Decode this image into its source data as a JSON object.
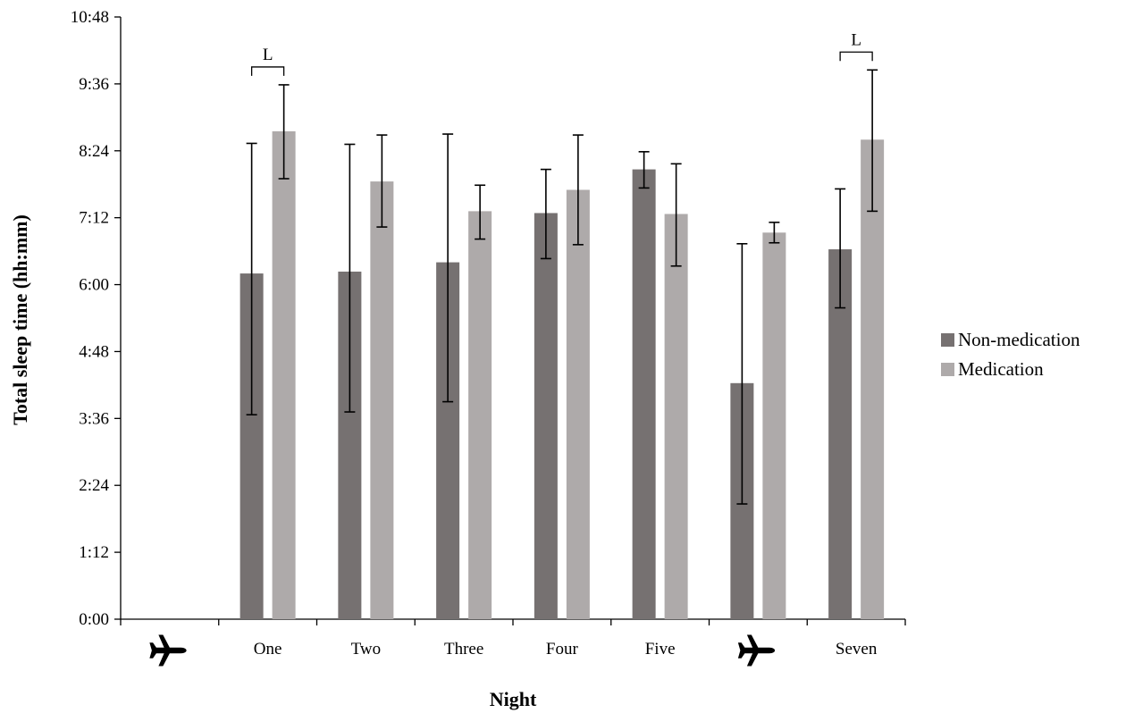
{
  "chart_data": {
    "type": "bar",
    "xlabel": "Night",
    "ylabel": "Total sleep time (hh:mm)",
    "y_ticks": [
      "0:00",
      "1:12",
      "2:24",
      "3:36",
      "4:48",
      "6:00",
      "7:12",
      "8:24",
      "9:36",
      "10:48"
    ],
    "y_unit": "minutes",
    "ylim": [
      0,
      648
    ],
    "categories": [
      {
        "label": "",
        "icon": "airplane-icon"
      },
      {
        "label": "One"
      },
      {
        "label": "Two"
      },
      {
        "label": "Three"
      },
      {
        "label": "Four"
      },
      {
        "label": "Five"
      },
      {
        "label": "",
        "icon": "airplane-icon"
      },
      {
        "label": "Seven"
      }
    ],
    "series": [
      {
        "name": "Non-medication",
        "color": "#767171",
        "values": [
          null,
          372,
          374,
          384,
          437,
          484,
          254,
          398
        ],
        "error_low": [
          null,
          220,
          223,
          234,
          388,
          464,
          124,
          335
        ],
        "error_high": [
          null,
          512,
          511,
          522,
          484,
          503,
          404,
          463
        ]
      },
      {
        "name": "Medication",
        "color": "#AEAAAA",
        "values": [
          null,
          525,
          471,
          439,
          462,
          436,
          416,
          516
        ],
        "error_low": [
          null,
          474,
          422,
          409,
          403,
          380,
          405,
          439
        ],
        "error_high": [
          null,
          575,
          521,
          467,
          521,
          490,
          427,
          591
        ]
      }
    ],
    "annotations": [
      {
        "text": "L",
        "category_index": 1
      },
      {
        "text": "L",
        "category_index": 7
      }
    ],
    "grid": false,
    "legend_position": "right"
  }
}
